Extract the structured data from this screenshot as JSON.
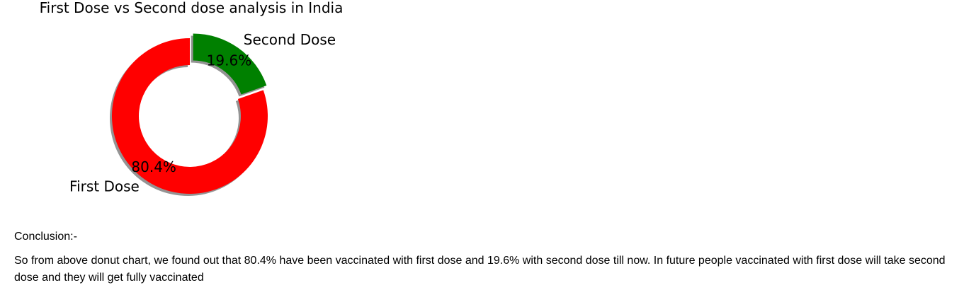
{
  "chart_data": {
    "type": "pie",
    "style": "donut",
    "title": "First Dose vs Second dose analysis in India",
    "categories": [
      "First Dose",
      "Second Dose"
    ],
    "values": [
      80.4,
      19.6
    ],
    "value_labels": [
      "80.4%",
      "19.6%"
    ],
    "colors": [
      "#ff0000",
      "#008000"
    ],
    "exploded": "Second Dose",
    "shadow": true
  },
  "conclusion": {
    "heading": "Conclusion:-",
    "body": "So from above donut chart, we found out that 80.4% have been vaccinated with first dose and 19.6% with second dose till now. In future people vaccinated with first dose will take second dose and they will get fully vaccinated"
  }
}
